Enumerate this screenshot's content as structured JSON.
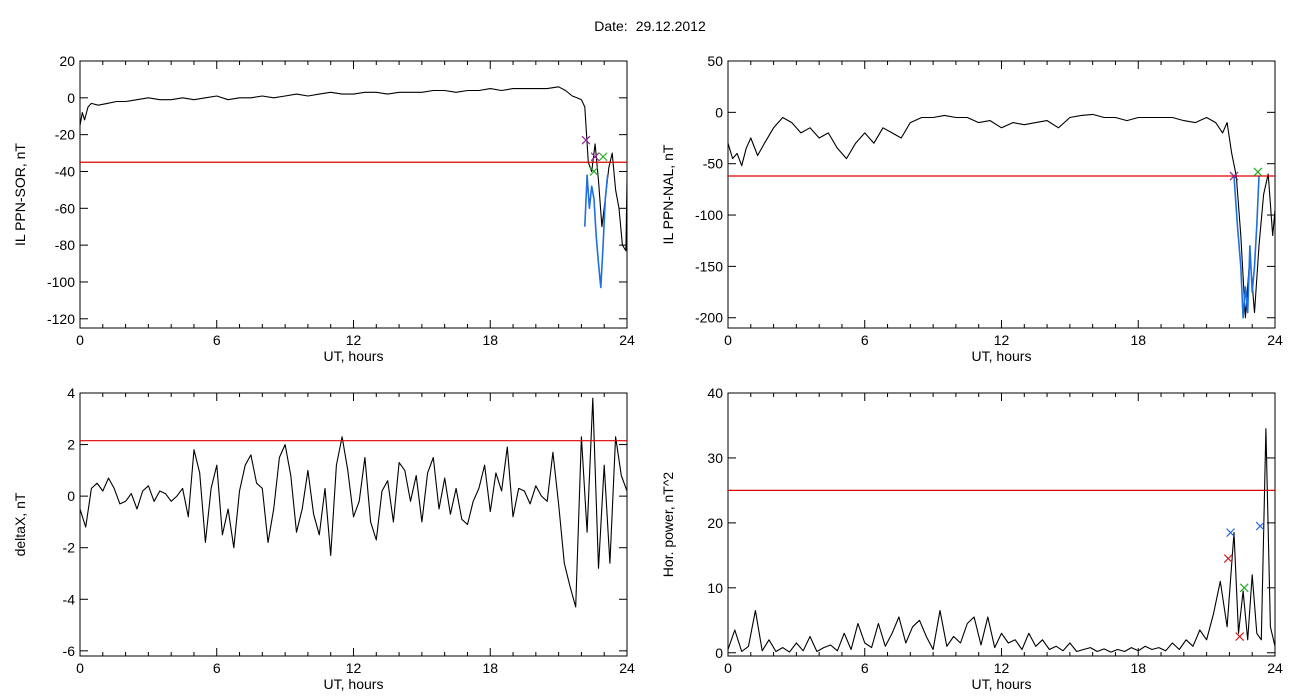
{
  "figure": {
    "date_label": "Date:",
    "date_value": "29.12.2012"
  },
  "colors": {
    "trace": "#000000",
    "threshold": "#dd0000",
    "highlight": "#1f6fe0",
    "marker_red": "#cc2020",
    "marker_green": "#22aa22",
    "marker_blue": "#2060e0",
    "marker_purple": "#8a2a8a"
  },
  "chart_data": [
    {
      "type": "line",
      "title": "",
      "xlabel": "UT, hours",
      "ylabel": "IL PPN-SOR, nT",
      "xlim": [
        0,
        24
      ],
      "ylim": [
        -125,
        20
      ],
      "xticks": [
        0,
        6,
        12,
        18,
        24
      ],
      "yticks": [
        20,
        0,
        -20,
        -40,
        -60,
        -80,
        -100,
        -120
      ],
      "threshold": -35,
      "series": [
        {
          "role": "trace",
          "x": [
            0,
            0.1,
            0.2,
            0.35,
            0.5,
            0.8,
            1.2,
            1.6,
            2.0,
            2.5,
            3.0,
            3.5,
            4.0,
            4.5,
            5.0,
            5.5,
            6.0,
            6.5,
            7.0,
            7.5,
            8.0,
            8.5,
            9.0,
            9.5,
            10.0,
            10.5,
            11.0,
            11.5,
            12.0,
            12.5,
            13.0,
            13.5,
            14.0,
            14.5,
            15.0,
            15.5,
            16.0,
            16.5,
            17.0,
            17.5,
            18.0,
            18.5,
            19.0,
            19.5,
            20.0,
            20.5,
            21.0,
            21.3,
            21.6,
            21.8,
            22.0,
            22.15,
            22.3,
            22.45,
            22.6,
            22.75,
            22.9,
            23.05,
            23.2,
            23.35,
            23.5,
            23.65,
            23.8,
            23.95,
            24.0
          ],
          "y": [
            -15,
            -8,
            -12,
            -5,
            -3,
            -4,
            -3,
            -2,
            -2,
            -1,
            0,
            -1,
            -1,
            0,
            -1,
            0,
            1,
            -1,
            0,
            0,
            1,
            0,
            1,
            2,
            1,
            2,
            3,
            2,
            2,
            3,
            3,
            2,
            3,
            3,
            3,
            4,
            4,
            3,
            4,
            4,
            5,
            4,
            5,
            5,
            5,
            5,
            6,
            4,
            1,
            0,
            -1,
            -5,
            -35,
            -40,
            -25,
            -45,
            -70,
            -55,
            -38,
            -30,
            -50,
            -60,
            -80,
            -83,
            -45
          ]
        },
        {
          "role": "highlight",
          "x": [
            22.15,
            22.25,
            22.35,
            22.45,
            22.55,
            22.65,
            22.75,
            22.85,
            22.95,
            23.05,
            23.15
          ],
          "y": [
            -70,
            -42,
            -60,
            -48,
            -55,
            -75,
            -90,
            -103,
            -80,
            -55,
            -42
          ]
        }
      ],
      "markers": [
        {
          "x": 22.2,
          "y": -23,
          "color": "purple"
        },
        {
          "x": 22.6,
          "y": -32,
          "color": "purple"
        },
        {
          "x": 22.55,
          "y": -40,
          "color": "green"
        },
        {
          "x": 22.95,
          "y": -32,
          "color": "green"
        }
      ]
    },
    {
      "type": "line",
      "title": "",
      "xlabel": "UT, hours",
      "ylabel": "IL PPN-NAL, nT",
      "xlim": [
        0,
        24
      ],
      "ylim": [
        -210,
        50
      ],
      "xticks": [
        0,
        6,
        12,
        18,
        24
      ],
      "yticks": [
        50,
        0,
        -50,
        -100,
        -150,
        -200
      ],
      "threshold": -62,
      "series": [
        {
          "role": "trace",
          "x": [
            0,
            0.2,
            0.4,
            0.6,
            0.8,
            1.0,
            1.3,
            1.6,
            2.0,
            2.4,
            2.8,
            3.2,
            3.6,
            4.0,
            4.4,
            4.8,
            5.2,
            5.6,
            6.0,
            6.4,
            6.8,
            7.2,
            7.6,
            8.0,
            8.5,
            9.0,
            9.5,
            10.0,
            10.5,
            11.0,
            11.5,
            12.0,
            12.5,
            13.0,
            13.5,
            14.0,
            14.5,
            15.0,
            15.5,
            16.0,
            16.5,
            17.0,
            17.5,
            18.0,
            18.5,
            19.0,
            19.5,
            20.0,
            20.5,
            21.0,
            21.4,
            21.7,
            21.9,
            22.1,
            22.3,
            22.5,
            22.7,
            22.9,
            23.1,
            23.3,
            23.5,
            23.7,
            23.9,
            24.0
          ],
          "y": [
            -30,
            -45,
            -40,
            -52,
            -35,
            -25,
            -42,
            -30,
            -15,
            -5,
            -10,
            -20,
            -15,
            -25,
            -20,
            -35,
            -45,
            -30,
            -20,
            -30,
            -15,
            -20,
            -25,
            -10,
            -5,
            -5,
            -3,
            -5,
            -5,
            -10,
            -8,
            -15,
            -10,
            -12,
            -10,
            -8,
            -15,
            -5,
            -3,
            -2,
            -5,
            -5,
            -8,
            -5,
            -5,
            -5,
            -5,
            -8,
            -10,
            -5,
            -10,
            -20,
            -10,
            -40,
            -62,
            -120,
            -200,
            -140,
            -195,
            -130,
            -80,
            -60,
            -120,
            -95
          ]
        },
        {
          "role": "highlight",
          "x": [
            22.2,
            22.35,
            22.5,
            22.6,
            22.7,
            22.8,
            22.9,
            23.0,
            23.1,
            23.2,
            23.3
          ],
          "y": [
            -62,
            -110,
            -150,
            -200,
            -170,
            -195,
            -130,
            -175,
            -150,
            -110,
            -62
          ]
        }
      ],
      "markers": [
        {
          "x": 22.2,
          "y": -62,
          "color": "purple"
        },
        {
          "x": 23.25,
          "y": -58,
          "color": "green"
        }
      ]
    },
    {
      "type": "line",
      "title": "",
      "xlabel": "UT, hours",
      "ylabel": "deltaX, nT",
      "xlim": [
        0,
        24
      ],
      "ylim": [
        -6.2,
        4
      ],
      "xticks": [
        0,
        6,
        12,
        18,
        24
      ],
      "yticks": [
        4,
        2,
        0,
        -2,
        -4,
        -6
      ],
      "threshold": 2.15,
      "series": [
        {
          "role": "trace",
          "x": [
            0,
            0.25,
            0.5,
            0.75,
            1.0,
            1.25,
            1.5,
            1.75,
            2.0,
            2.25,
            2.5,
            2.75,
            3.0,
            3.25,
            3.5,
            3.75,
            4.0,
            4.25,
            4.5,
            4.75,
            5.0,
            5.25,
            5.5,
            5.75,
            6.0,
            6.25,
            6.5,
            6.75,
            7.0,
            7.25,
            7.5,
            7.75,
            8.0,
            8.25,
            8.5,
            8.75,
            9.0,
            9.25,
            9.5,
            9.75,
            10.0,
            10.25,
            10.5,
            10.75,
            11.0,
            11.25,
            11.5,
            11.75,
            12.0,
            12.25,
            12.5,
            12.75,
            13.0,
            13.25,
            13.5,
            13.75,
            14.0,
            14.25,
            14.5,
            14.75,
            15.0,
            15.25,
            15.5,
            15.75,
            16.0,
            16.25,
            16.5,
            16.75,
            17.0,
            17.25,
            17.5,
            17.75,
            18.0,
            18.25,
            18.5,
            18.75,
            19.0,
            19.25,
            19.5,
            19.75,
            20.0,
            20.25,
            20.5,
            20.75,
            21.0,
            21.25,
            21.5,
            21.75,
            22.0,
            22.25,
            22.5,
            22.75,
            23.0,
            23.25,
            23.5,
            23.75,
            24.0
          ],
          "y": [
            -0.5,
            -1.2,
            0.3,
            0.5,
            0.2,
            0.7,
            0.3,
            -0.3,
            -0.2,
            0.1,
            -0.5,
            0.2,
            0.4,
            -0.2,
            0.2,
            0.1,
            -0.2,
            0.0,
            0.3,
            -0.8,
            1.8,
            0.9,
            -1.8,
            0.3,
            1.2,
            -1.5,
            -0.5,
            -2.0,
            0.2,
            1.2,
            1.6,
            0.5,
            0.3,
            -1.8,
            -0.5,
            1.5,
            2.0,
            0.8,
            -1.4,
            -0.5,
            1.0,
            -0.7,
            -1.5,
            0.3,
            -2.3,
            1.2,
            2.3,
            1.0,
            -0.8,
            -0.2,
            1.5,
            -1.0,
            -1.7,
            0.2,
            0.6,
            -1.0,
            1.3,
            1.0,
            -0.2,
            0.8,
            -1.0,
            0.9,
            1.5,
            -0.5,
            0.7,
            -0.7,
            0.3,
            -0.9,
            -1.1,
            -0.2,
            0.3,
            1.2,
            -0.6,
            0.9,
            0.2,
            1.9,
            -0.8,
            0.3,
            0.2,
            -0.3,
            0.4,
            0.0,
            -0.2,
            1.7,
            -0.3,
            -2.6,
            -3.5,
            -4.3,
            2.3,
            -1.4,
            3.8,
            -2.8,
            1.2,
            -2.6,
            2.3,
            0.8,
            0.2
          ]
        }
      ],
      "markers": []
    },
    {
      "type": "line",
      "title": "",
      "xlabel": "UT, hours",
      "ylabel": "Hor. power, nT^2",
      "xlim": [
        0,
        24
      ],
      "ylim": [
        -0.5,
        40
      ],
      "xticks": [
        0,
        6,
        12,
        18,
        24
      ],
      "yticks": [
        40,
        30,
        20,
        10,
        0
      ],
      "threshold": 25,
      "series": [
        {
          "role": "trace",
          "x": [
            0,
            0.3,
            0.6,
            0.9,
            1.2,
            1.5,
            1.8,
            2.1,
            2.4,
            2.7,
            3.0,
            3.3,
            3.6,
            3.9,
            4.2,
            4.5,
            4.8,
            5.1,
            5.4,
            5.7,
            6.0,
            6.3,
            6.6,
            6.9,
            7.2,
            7.5,
            7.8,
            8.1,
            8.4,
            8.7,
            9.0,
            9.3,
            9.6,
            9.9,
            10.2,
            10.5,
            10.8,
            11.1,
            11.4,
            11.7,
            12.0,
            12.3,
            12.6,
            12.9,
            13.2,
            13.5,
            13.8,
            14.1,
            14.4,
            14.7,
            15.0,
            15.3,
            15.6,
            15.9,
            16.2,
            16.5,
            16.8,
            17.1,
            17.4,
            17.7,
            18.0,
            18.3,
            18.6,
            18.9,
            19.2,
            19.5,
            19.8,
            20.1,
            20.4,
            20.7,
            21.0,
            21.3,
            21.6,
            21.9,
            22.2,
            22.4,
            22.6,
            22.8,
            23.0,
            23.2,
            23.4,
            23.6,
            23.8,
            24.0
          ],
          "y": [
            0.5,
            3.5,
            0.2,
            1.0,
            6.5,
            0.3,
            2.0,
            0.2,
            0.8,
            0.1,
            1.5,
            0.3,
            2.5,
            0.2,
            0.8,
            1.2,
            0.3,
            3.0,
            0.5,
            4.5,
            1.5,
            0.8,
            4.5,
            1.0,
            3.0,
            5.5,
            1.5,
            4.0,
            5.0,
            2.5,
            0.5,
            6.5,
            1.0,
            2.5,
            1.5,
            4.5,
            5.5,
            1.2,
            5.5,
            0.8,
            3.0,
            1.5,
            2.0,
            0.5,
            3.0,
            1.0,
            2.0,
            0.5,
            1.0,
            0.3,
            1.5,
            0.2,
            0.5,
            0.8,
            0.2,
            0.6,
            0.1,
            0.5,
            0.2,
            0.8,
            0.3,
            1.0,
            0.5,
            0.8,
            0.3,
            1.5,
            0.5,
            2.0,
            1.0,
            3.5,
            2.0,
            6.0,
            11.0,
            4.0,
            18.5,
            3.0,
            9.5,
            2.0,
            12.0,
            3.0,
            2.0,
            34.5,
            4.0,
            1.0
          ]
        }
      ],
      "markers": [
        {
          "x": 22.05,
          "y": 18.5,
          "color": "blue"
        },
        {
          "x": 21.95,
          "y": 14.5,
          "color": "red"
        },
        {
          "x": 22.65,
          "y": 10.0,
          "color": "green"
        },
        {
          "x": 22.45,
          "y": 2.5,
          "color": "red"
        },
        {
          "x": 23.35,
          "y": 19.5,
          "color": "blue"
        }
      ]
    }
  ]
}
